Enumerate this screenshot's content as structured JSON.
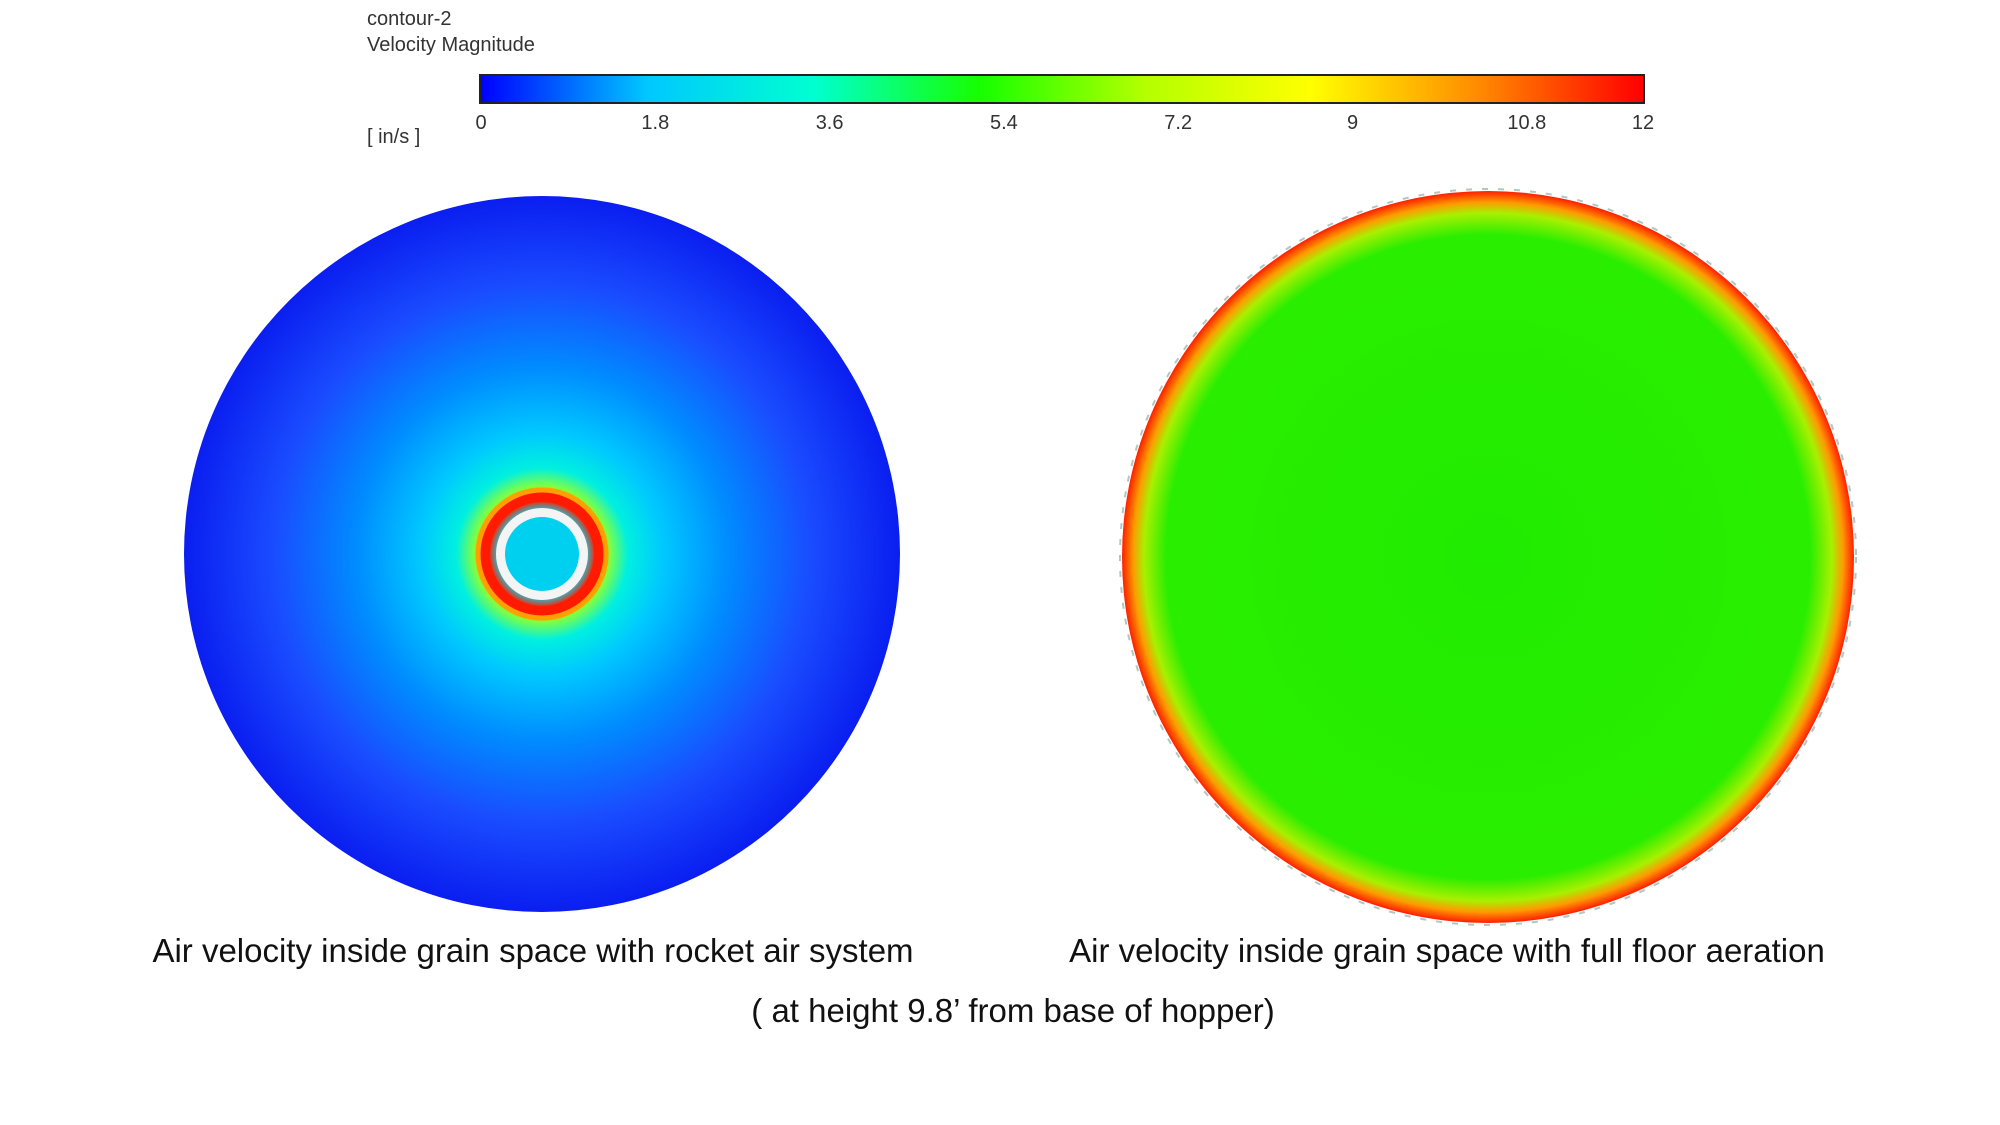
{
  "legend": {
    "title": "contour-2",
    "subtitle": "Velocity Magnitude",
    "units": "[ in/s ]",
    "min": 0,
    "max": 12,
    "ticks": [
      "0",
      "1.8",
      "3.6",
      "5.4",
      "7.2",
      "9",
      "10.8",
      "12"
    ],
    "tick_values": [
      0,
      1.8,
      3.6,
      5.4,
      7.2,
      9,
      10.8,
      12
    ],
    "colormap": [
      "#0000ff",
      "#00c8ff",
      "#00ffd0",
      "#16ff00",
      "#b4ff00",
      "#ffff00",
      "#ff8c00",
      "#ff0000"
    ]
  },
  "plots": {
    "left": {
      "caption": "Air velocity inside grain space with rocket air system",
      "outer_color": "#0a23f5",
      "mid_color": "#00b4ff",
      "core_color": "#00e0f0",
      "ring_color": "#ff2000"
    },
    "right": {
      "caption": "Air velocity inside grain space with full floor aeration",
      "fill_color": "#22ee00",
      "rim_color": "#ff2a00"
    },
    "shared_caption": "( at height 9.8’ from base of hopper)"
  }
}
